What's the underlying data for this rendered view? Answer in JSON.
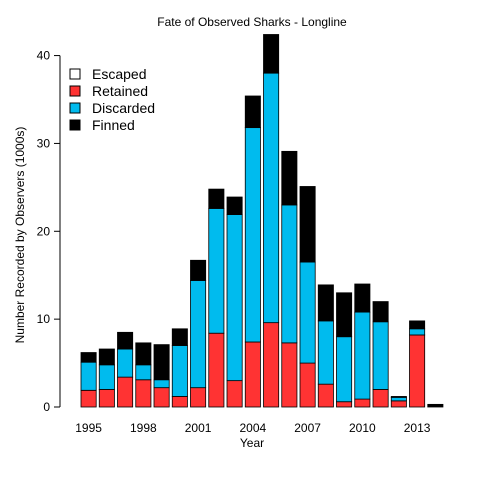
{
  "chart_data": {
    "type": "bar",
    "stacked": true,
    "title": "Fate of Observed Sharks - Longline",
    "xlabel": "Year",
    "ylabel": "Number Recorded by Observers (1000s)",
    "ylim": [
      0,
      42
    ],
    "yticks": [
      0,
      10,
      20,
      30,
      40
    ],
    "xtick_labels": [
      "1995",
      "1998",
      "2001",
      "2004",
      "2007",
      "2010",
      "2013"
    ],
    "categories": [
      "1995",
      "1996",
      "1997",
      "1998",
      "1999",
      "2000",
      "2001",
      "2002",
      "2003",
      "2004",
      "2005",
      "2006",
      "2007",
      "2008",
      "2009",
      "2010",
      "2011",
      "2012",
      "2013",
      "2014"
    ],
    "legend_position": "top-left",
    "series": [
      {
        "name": "Escaped",
        "color": "#ffffff",
        "values": [
          0,
          0,
          0,
          0,
          0,
          0,
          0,
          0,
          0,
          0,
          0,
          0,
          0,
          0,
          0,
          0,
          0,
          0,
          0,
          0
        ]
      },
      {
        "name": "Retained",
        "color": "#ff3333",
        "values": [
          1.9,
          2.0,
          3.4,
          3.1,
          2.2,
          1.2,
          2.2,
          8.4,
          3.0,
          7.4,
          9.6,
          7.3,
          5.0,
          2.6,
          0.6,
          0.9,
          2.0,
          0.7,
          8.2,
          0
        ]
      },
      {
        "name": "Discarded",
        "color": "#00bbee",
        "values": [
          3.2,
          2.8,
          3.2,
          1.7,
          0.9,
          5.8,
          12.2,
          14.2,
          18.9,
          24.4,
          28.4,
          15.7,
          11.5,
          7.2,
          7.4,
          9.9,
          7.7,
          0.4,
          0.7,
          0
        ]
      },
      {
        "name": "Finned",
        "color": "#000000",
        "values": [
          1.1,
          1.8,
          1.9,
          2.5,
          4.0,
          1.9,
          2.3,
          2.2,
          2.0,
          3.6,
          4.4,
          6.1,
          8.6,
          4.1,
          5.0,
          3.2,
          2.3,
          0.1,
          0.9,
          0.3
        ]
      }
    ]
  }
}
